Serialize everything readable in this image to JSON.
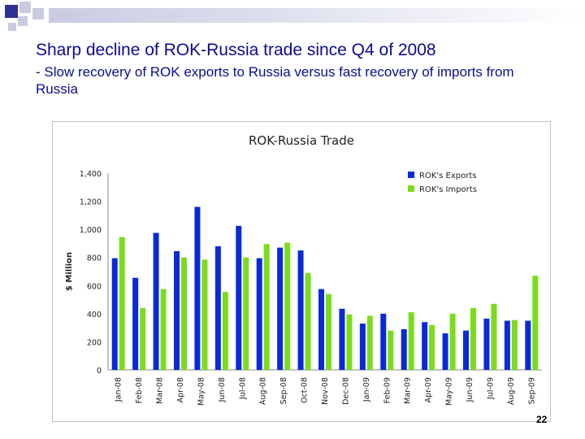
{
  "slide": {
    "title": "Sharp decline of ROK-Russia trade since Q4 of 2008",
    "subtitle": "- Slow recovery of ROK exports to Russia versus fast recovery of imports from Russia",
    "page_number": "22"
  },
  "colors": {
    "exports": "#0a2ad8",
    "imports": "#7cdc1c",
    "title_text": "#0b0b8f"
  },
  "chart_data": {
    "type": "bar",
    "title": "ROK-Russia Trade",
    "ylabel": "$ Million",
    "xlabel": "",
    "ylim": [
      0,
      1400
    ],
    "yticks": [
      "0",
      "200",
      "400",
      "600",
      "800",
      "1,000",
      "1,200",
      "1,400"
    ],
    "ytick_values": [
      0,
      200,
      400,
      600,
      800,
      1000,
      1200,
      1400
    ],
    "grid": true,
    "legend_position": "top-right",
    "categories": [
      "Jan-08",
      "Feb-08",
      "Mar-08",
      "Apr-08",
      "May-08",
      "Jun-08",
      "Jul-08",
      "Aug-08",
      "Sep-08",
      "Oct-08",
      "Nov-08",
      "Dec-08",
      "Jan-09",
      "Feb-09",
      "Mar-09",
      "Apr-09",
      "May-09",
      "Jun-09",
      "Jul-09",
      "Aug-09",
      "Sep-09"
    ],
    "series": [
      {
        "name": "ROK's Exports",
        "color": "#0a2ad8",
        "values": [
          795,
          655,
          975,
          845,
          1160,
          880,
          1025,
          795,
          870,
          850,
          575,
          435,
          330,
          400,
          290,
          340,
          260,
          280,
          365,
          350,
          350
        ]
      },
      {
        "name": "ROK's Imports",
        "color": "#7cdc1c",
        "values": [
          945,
          440,
          575,
          800,
          785,
          555,
          800,
          895,
          905,
          690,
          540,
          395,
          385,
          280,
          410,
          320,
          400,
          440,
          470,
          355,
          670
        ]
      }
    ]
  }
}
